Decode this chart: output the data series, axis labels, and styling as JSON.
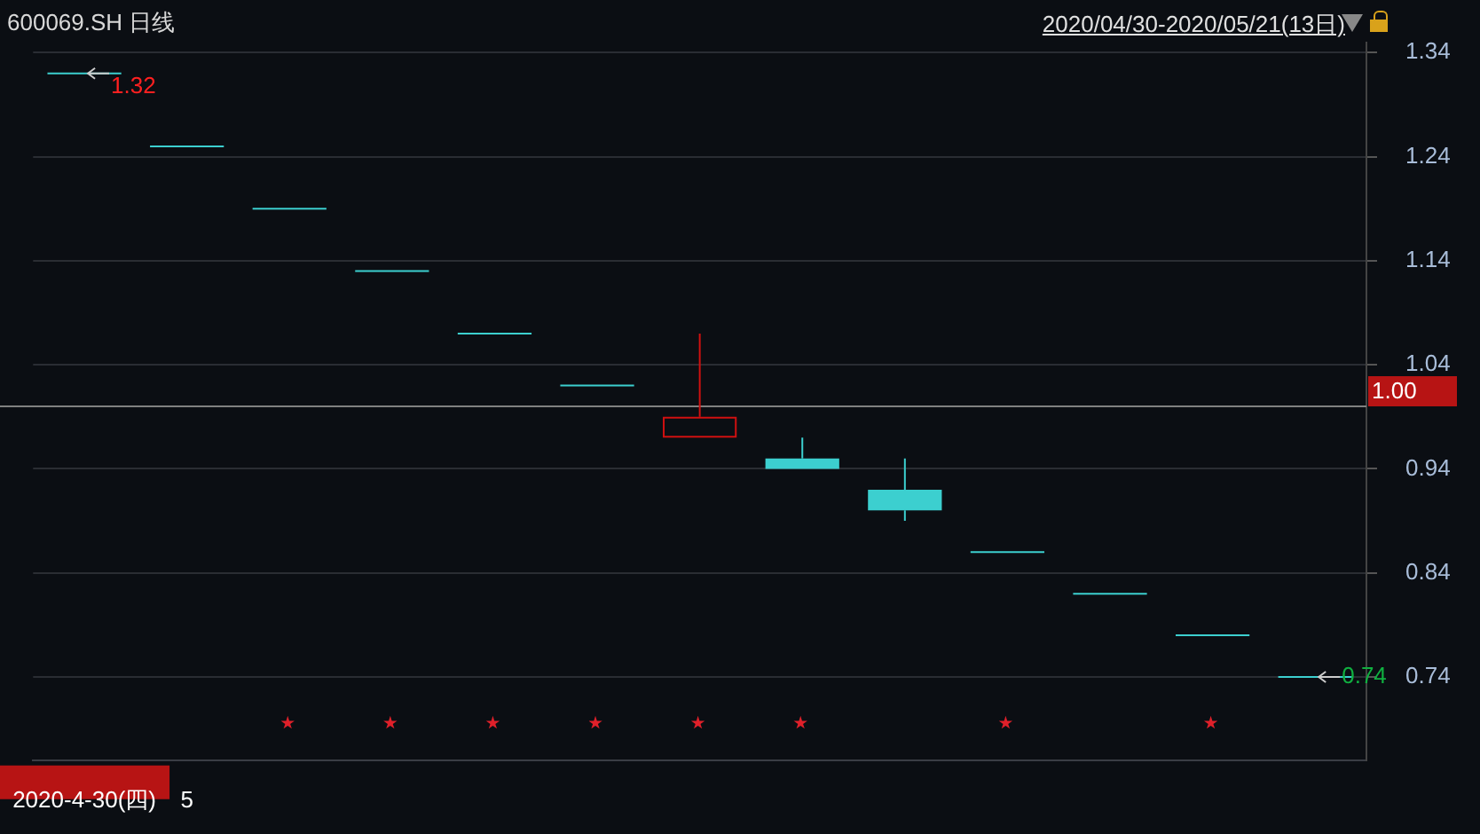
{
  "chart_data": {
    "type": "candlestick",
    "title": "600069.SH 日线",
    "subtitle": "2020/04/30-2020/05/21(13日)",
    "categories": [
      "2020-4-30(四)",
      "5",
      null,
      null,
      null,
      null,
      null,
      null,
      null,
      null,
      null,
      null,
      null
    ],
    "ohlc": [
      [
        1.32,
        1.32,
        1.32,
        1.32
      ],
      [
        1.25,
        1.25,
        1.25,
        1.25
      ],
      [
        1.19,
        1.19,
        1.19,
        1.19
      ],
      [
        1.13,
        1.13,
        1.13,
        1.13
      ],
      [
        1.07,
        1.07,
        1.07,
        1.07
      ],
      [
        1.02,
        1.02,
        1.02,
        1.02
      ],
      [
        0.97,
        1.07,
        0.97,
        0.99
      ],
      [
        0.95,
        0.97,
        0.94,
        0.94
      ],
      [
        0.92,
        0.95,
        0.89,
        0.9
      ],
      [
        0.86,
        0.86,
        0.86,
        0.86
      ],
      [
        0.82,
        0.82,
        0.82,
        0.82
      ],
      [
        0.78,
        0.78,
        0.78,
        0.78
      ],
      [
        0.74,
        0.74,
        0.74,
        0.74
      ]
    ],
    "colors": [
      "#3ccfcf",
      "#3ccfcf",
      "#3ccfcf",
      "#3ccfcf",
      "#3ccfcf",
      "#3ccfcf",
      "#d01010",
      "#3ccfcf",
      "#3ccfcf",
      "#3ccfcf",
      "#3ccfcf",
      "#3ccfcf",
      "#3ccfcf"
    ],
    "ylim": [
      0.66,
      1.35
    ],
    "yticks": [
      0.74,
      0.84,
      0.94,
      1.04,
      1.14,
      1.24,
      1.34
    ],
    "grid": "y",
    "ref_lines": [
      {
        "axis": "y",
        "value": 1.0,
        "label": "1.00",
        "color": "#808080"
      }
    ],
    "annotations": [
      {
        "text": "1.32",
        "x": "2020-4-30(四)",
        "y": 1.32
      },
      "0.74"
    ]
  }
}
